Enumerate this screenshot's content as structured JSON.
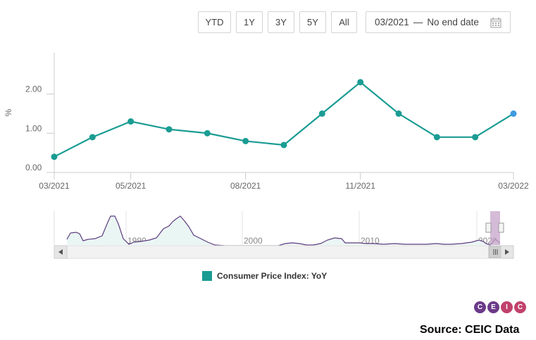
{
  "range_buttons": [
    "YTD",
    "1Y",
    "3Y",
    "5Y",
    "All"
  ],
  "date_range": {
    "start": "03/2021",
    "separator": "—",
    "end": "No end date"
  },
  "icons": {
    "calendar": "calendar-icon"
  },
  "chart_data": {
    "type": "line",
    "title": "",
    "xlabel": "",
    "ylabel": "%",
    "x": [
      "03/2021",
      "04/2021",
      "05/2021",
      "06/2021",
      "07/2021",
      "08/2021",
      "09/2021",
      "10/2021",
      "11/2021",
      "12/2021",
      "01/2022",
      "02/2022",
      "03/2022"
    ],
    "series": [
      {
        "name": "Consumer Price Index: YoY",
        "values": [
          0.4,
          0.9,
          1.3,
          1.1,
          1.0,
          0.8,
          0.7,
          1.5,
          2.3,
          1.5,
          0.9,
          0.9,
          1.5
        ]
      }
    ],
    "ylim": [
      0,
      3.05
    ],
    "yticks": [
      "0.00",
      "1.00",
      "2.00"
    ],
    "xtick_labels": [
      "03/2021",
      "05/2021",
      "08/2021",
      "11/2021",
      "03/2022"
    ],
    "line_color": "#1a9c93",
    "highlight_color": "#3e9be0",
    "grid": false,
    "legend_position": "bottom"
  },
  "navigator": {
    "labels": [
      "1990",
      "2000",
      "2010",
      "2020"
    ],
    "line_color": "#5d3c7e"
  },
  "legend": {
    "label": "Consumer Price Index: YoY",
    "color": "#1a9c93"
  },
  "logo": {
    "letters": [
      "C",
      "E",
      "I",
      "C"
    ]
  },
  "source": "Source: CEIC Data"
}
